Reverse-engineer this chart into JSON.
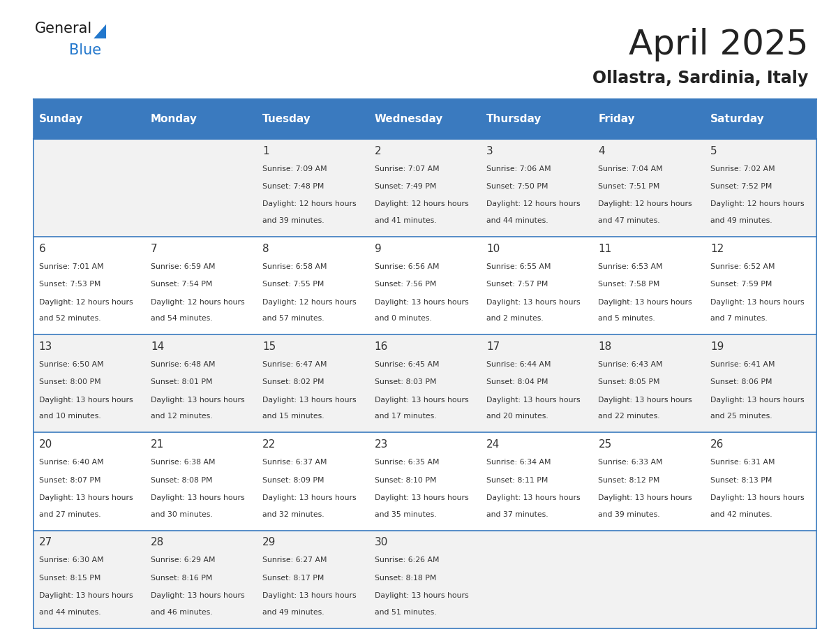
{
  "title": "April 2025",
  "subtitle": "Ollastra, Sardinia, Italy",
  "days_of_week": [
    "Sunday",
    "Monday",
    "Tuesday",
    "Wednesday",
    "Thursday",
    "Friday",
    "Saturday"
  ],
  "header_bg": "#3a7abf",
  "header_text": "#ffffff",
  "cell_bg_odd": "#f2f2f2",
  "cell_bg_even": "#ffffff",
  "border_color": "#3a7abf",
  "text_color": "#333333",
  "title_color": "#222222",
  "calendar": [
    [
      {
        "day": "",
        "sunrise": "",
        "sunset": "",
        "daylight": ""
      },
      {
        "day": "",
        "sunrise": "",
        "sunset": "",
        "daylight": ""
      },
      {
        "day": "1",
        "sunrise": "7:09 AM",
        "sunset": "7:48 PM",
        "daylight": "12 hours and 39 minutes."
      },
      {
        "day": "2",
        "sunrise": "7:07 AM",
        "sunset": "7:49 PM",
        "daylight": "12 hours and 41 minutes."
      },
      {
        "day": "3",
        "sunrise": "7:06 AM",
        "sunset": "7:50 PM",
        "daylight": "12 hours and 44 minutes."
      },
      {
        "day": "4",
        "sunrise": "7:04 AM",
        "sunset": "7:51 PM",
        "daylight": "12 hours and 47 minutes."
      },
      {
        "day": "5",
        "sunrise": "7:02 AM",
        "sunset": "7:52 PM",
        "daylight": "12 hours and 49 minutes."
      }
    ],
    [
      {
        "day": "6",
        "sunrise": "7:01 AM",
        "sunset": "7:53 PM",
        "daylight": "12 hours and 52 minutes."
      },
      {
        "day": "7",
        "sunrise": "6:59 AM",
        "sunset": "7:54 PM",
        "daylight": "12 hours and 54 minutes."
      },
      {
        "day": "8",
        "sunrise": "6:58 AM",
        "sunset": "7:55 PM",
        "daylight": "12 hours and 57 minutes."
      },
      {
        "day": "9",
        "sunrise": "6:56 AM",
        "sunset": "7:56 PM",
        "daylight": "13 hours and 0 minutes."
      },
      {
        "day": "10",
        "sunrise": "6:55 AM",
        "sunset": "7:57 PM",
        "daylight": "13 hours and 2 minutes."
      },
      {
        "day": "11",
        "sunrise": "6:53 AM",
        "sunset": "7:58 PM",
        "daylight": "13 hours and 5 minutes."
      },
      {
        "day": "12",
        "sunrise": "6:52 AM",
        "sunset": "7:59 PM",
        "daylight": "13 hours and 7 minutes."
      }
    ],
    [
      {
        "day": "13",
        "sunrise": "6:50 AM",
        "sunset": "8:00 PM",
        "daylight": "13 hours and 10 minutes."
      },
      {
        "day": "14",
        "sunrise": "6:48 AM",
        "sunset": "8:01 PM",
        "daylight": "13 hours and 12 minutes."
      },
      {
        "day": "15",
        "sunrise": "6:47 AM",
        "sunset": "8:02 PM",
        "daylight": "13 hours and 15 minutes."
      },
      {
        "day": "16",
        "sunrise": "6:45 AM",
        "sunset": "8:03 PM",
        "daylight": "13 hours and 17 minutes."
      },
      {
        "day": "17",
        "sunrise": "6:44 AM",
        "sunset": "8:04 PM",
        "daylight": "13 hours and 20 minutes."
      },
      {
        "day": "18",
        "sunrise": "6:43 AM",
        "sunset": "8:05 PM",
        "daylight": "13 hours and 22 minutes."
      },
      {
        "day": "19",
        "sunrise": "6:41 AM",
        "sunset": "8:06 PM",
        "daylight": "13 hours and 25 minutes."
      }
    ],
    [
      {
        "day": "20",
        "sunrise": "6:40 AM",
        "sunset": "8:07 PM",
        "daylight": "13 hours and 27 minutes."
      },
      {
        "day": "21",
        "sunrise": "6:38 AM",
        "sunset": "8:08 PM",
        "daylight": "13 hours and 30 minutes."
      },
      {
        "day": "22",
        "sunrise": "6:37 AM",
        "sunset": "8:09 PM",
        "daylight": "13 hours and 32 minutes."
      },
      {
        "day": "23",
        "sunrise": "6:35 AM",
        "sunset": "8:10 PM",
        "daylight": "13 hours and 35 minutes."
      },
      {
        "day": "24",
        "sunrise": "6:34 AM",
        "sunset": "8:11 PM",
        "daylight": "13 hours and 37 minutes."
      },
      {
        "day": "25",
        "sunrise": "6:33 AM",
        "sunset": "8:12 PM",
        "daylight": "13 hours and 39 minutes."
      },
      {
        "day": "26",
        "sunrise": "6:31 AM",
        "sunset": "8:13 PM",
        "daylight": "13 hours and 42 minutes."
      }
    ],
    [
      {
        "day": "27",
        "sunrise": "6:30 AM",
        "sunset": "8:15 PM",
        "daylight": "13 hours and 44 minutes."
      },
      {
        "day": "28",
        "sunrise": "6:29 AM",
        "sunset": "8:16 PM",
        "daylight": "13 hours and 46 minutes."
      },
      {
        "day": "29",
        "sunrise": "6:27 AM",
        "sunset": "8:17 PM",
        "daylight": "13 hours and 49 minutes."
      },
      {
        "day": "30",
        "sunrise": "6:26 AM",
        "sunset": "8:18 PM",
        "daylight": "13 hours and 51 minutes."
      },
      {
        "day": "",
        "sunrise": "",
        "sunset": "",
        "daylight": ""
      },
      {
        "day": "",
        "sunrise": "",
        "sunset": "",
        "daylight": ""
      },
      {
        "day": "",
        "sunrise": "",
        "sunset": "",
        "daylight": ""
      }
    ]
  ]
}
